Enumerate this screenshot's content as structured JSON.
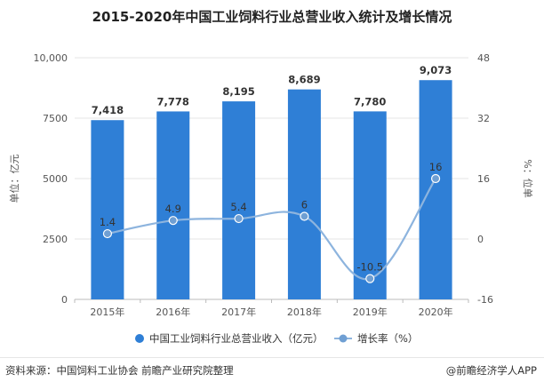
{
  "title": "2015-2020年中国工业饲料行业总营业收入统计及增长情况",
  "colors": {
    "bar": "#2f7fd6",
    "line": "#8db4de",
    "marker": "#6f9fd3"
  },
  "chart_data": {
    "type": "bar",
    "categories": [
      "2015年",
      "2016年",
      "2017年",
      "2018年",
      "2019年",
      "2020年"
    ],
    "series": [
      {
        "name": "中国工业饲料行业总营业收入（亿元）",
        "type": "bar",
        "axis": "left",
        "values": [
          7418,
          7778,
          8195,
          8689,
          7780,
          9073
        ],
        "labels": [
          "7,418",
          "7,778",
          "8,195",
          "8,689",
          "7,780",
          "9,073"
        ]
      },
      {
        "name": "增长率（%）",
        "type": "line",
        "axis": "right",
        "values": [
          1.4,
          4.9,
          5.4,
          6,
          -10.5,
          16
        ],
        "labels": [
          "1.4",
          "4.9",
          "5.4",
          "6",
          "-10.5",
          "16"
        ]
      }
    ],
    "y_left": {
      "label": "单位：亿元",
      "range": [
        0,
        10000
      ],
      "ticks": [
        0,
        2500,
        5000,
        7500,
        10000
      ],
      "tick_labels": [
        "0",
        "2500",
        "5000",
        "7500",
        "10,000"
      ]
    },
    "y_right": {
      "label": "%：位单",
      "range": [
        -16,
        48
      ],
      "ticks": [
        -16,
        0,
        16,
        32,
        48
      ],
      "tick_labels": [
        "-16",
        "0",
        "16",
        "32",
        "48"
      ]
    },
    "grid": true,
    "legend_position": "bottom"
  },
  "footer": {
    "source": "资料来源：中国饲料工业协会 前瞻产业研究院整理",
    "credit": "@前瞻经济学人APP"
  }
}
